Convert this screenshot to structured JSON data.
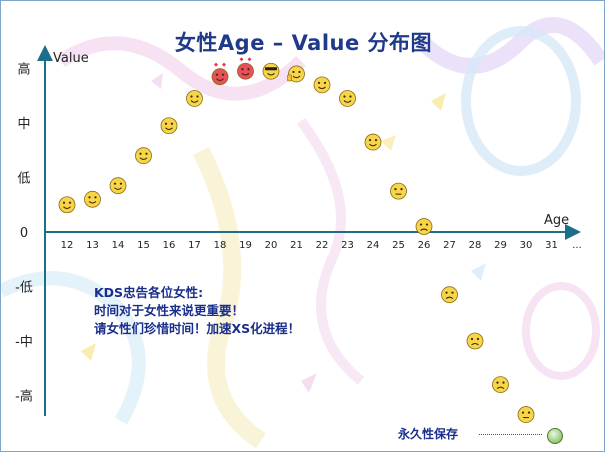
{
  "title": "女性Age – Value 分布图",
  "note": {
    "line1": "KDS忠告各位女性:",
    "line2": "时间对于女性来说更重要！",
    "line3": "请女性们珍惜时间！加速XS化进程！"
  },
  "footer": {
    "text": "永久性保存"
  },
  "chart_data": {
    "type": "scatter",
    "title": "女性Age – Value 分布图",
    "xlabel": "Age",
    "ylabel": "Value",
    "x_tick_labels": [
      "12",
      "13",
      "14",
      "15",
      "16",
      "17",
      "18",
      "19",
      "20",
      "21",
      "22",
      "23",
      "24",
      "25",
      "26",
      "27",
      "28",
      "29",
      "30",
      "31",
      "..."
    ],
    "y_tick_labels": [
      "高",
      "中",
      "低",
      "0",
      "-低",
      "-中",
      "-高"
    ],
    "y_tick_values": [
      3,
      2,
      1,
      0,
      -1,
      -2,
      -3
    ],
    "ylim": [
      -3.3,
      3.3
    ],
    "grid": false,
    "points": [
      {
        "x": 12,
        "y": 0.5,
        "icon": "smiley-face-icon"
      },
      {
        "x": 13,
        "y": 0.6,
        "icon": "smiley-face-icon"
      },
      {
        "x": 14,
        "y": 0.85,
        "icon": "smiley-face-icon"
      },
      {
        "x": 15,
        "y": 1.4,
        "icon": "smiley-face-icon"
      },
      {
        "x": 16,
        "y": 1.95,
        "icon": "smiley-face-icon"
      },
      {
        "x": 17,
        "y": 2.45,
        "icon": "grinning-face-icon"
      },
      {
        "x": 18,
        "y": 2.85,
        "icon": "love-face-icon"
      },
      {
        "x": 19,
        "y": 2.95,
        "icon": "love-face-icon"
      },
      {
        "x": 20,
        "y": 2.95,
        "icon": "cool-face-icon"
      },
      {
        "x": 21,
        "y": 2.9,
        "icon": "thumbs-up-face-icon"
      },
      {
        "x": 22,
        "y": 2.7,
        "icon": "content-face-icon"
      },
      {
        "x": 23,
        "y": 2.45,
        "icon": "content-face-icon"
      },
      {
        "x": 24,
        "y": 1.65,
        "icon": "smiley-face-icon"
      },
      {
        "x": 25,
        "y": 0.75,
        "icon": "neutral-face-icon"
      },
      {
        "x": 26,
        "y": 0.1,
        "icon": "angry-face-icon"
      },
      {
        "x": 27,
        "y": -1.15,
        "icon": "frown-face-icon"
      },
      {
        "x": 28,
        "y": -2.0,
        "icon": "worried-face-icon"
      },
      {
        "x": 29,
        "y": -2.8,
        "icon": "crying-face-icon"
      },
      {
        "x": 30,
        "y": -3.35,
        "icon": "sleepy-face-icon"
      }
    ]
  },
  "colors": {
    "axis": "#1c6f8a",
    "title": "#1f3a8a",
    "note": "#1a2e8c",
    "face": "#f6d54a",
    "love_face": "#e8505b"
  }
}
